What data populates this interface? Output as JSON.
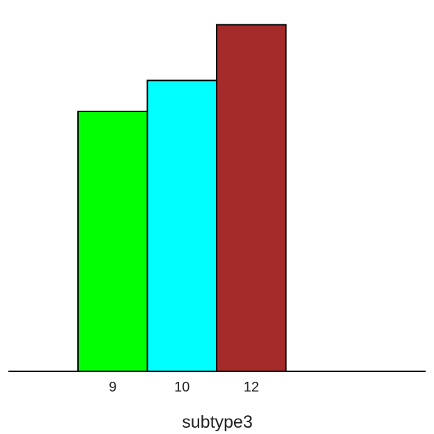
{
  "chart_data": {
    "type": "bar",
    "categories": [
      "9",
      "10",
      "12"
    ],
    "values": [
      0.84,
      0.94,
      1.12
    ],
    "colors": [
      "#00ff00",
      "#00ffff",
      "#a52a2a"
    ],
    "xlabel": "subtype3",
    "ylabel": "",
    "ylim": [
      0,
      1.2
    ],
    "grid": false,
    "legend": "none"
  }
}
